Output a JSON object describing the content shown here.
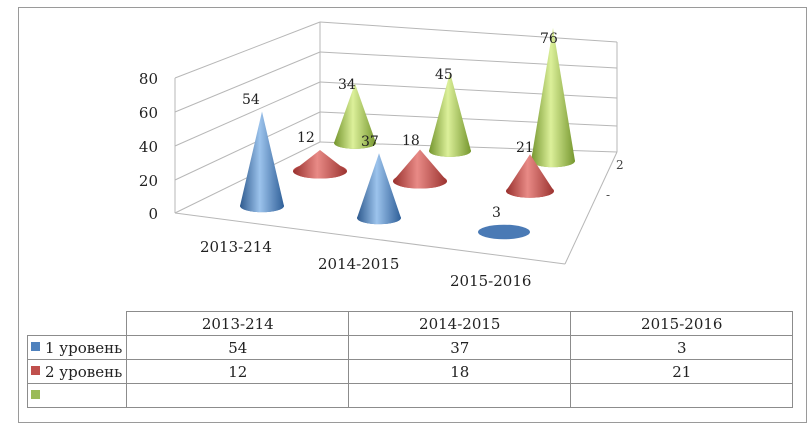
{
  "chart_data": {
    "type": "bar",
    "style": "3d-cone",
    "categories": [
      "2013-214",
      "2014-2015",
      "2015-2016"
    ],
    "series": [
      {
        "name": "1 уровень",
        "values": [
          54,
          37,
          3
        ],
        "color": "#4f81bd"
      },
      {
        "name": "2 уровень",
        "values": [
          12,
          18,
          21
        ],
        "color": "#c0504d"
      },
      {
        "name": "",
        "values": [
          34,
          45,
          76
        ],
        "color": "#9bbb59"
      }
    ],
    "y_ticks": [
      "0",
      "20",
      "40",
      "60",
      "80"
    ],
    "ylim": [
      0,
      80
    ],
    "side_ticks": [
      "2",
      "-"
    ],
    "data_labels": [
      "54",
      "37",
      "3",
      "12",
      "18",
      "21",
      "34",
      "45",
      "76"
    ],
    "grid": true,
    "data_table": true
  }
}
